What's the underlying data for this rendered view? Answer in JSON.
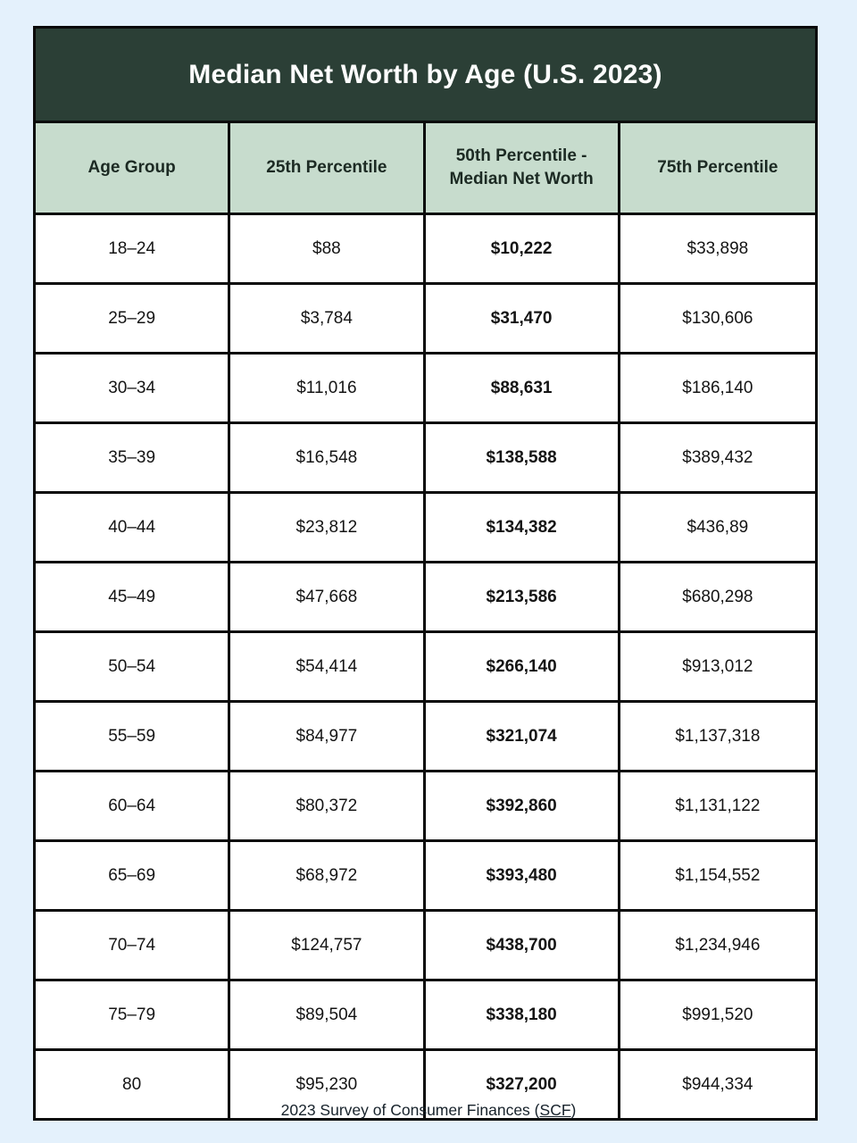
{
  "title": "Median Net Worth by Age (U.S. 2023)",
  "footer": {
    "prefix": "2023 Survey of Consumer Finances (",
    "link_text": "SCF",
    "suffix": ")"
  },
  "colors": {
    "page_bg": "#e4f1fc",
    "title_bg": "#2b3f36",
    "title_text": "#ffffff",
    "header_bg": "#c7dccd",
    "border": "#0a0a0a"
  },
  "chart_data": {
    "type": "table",
    "title": "Median Net Worth by Age (U.S. 2023)",
    "columns": [
      "Age Group",
      "25th Percentile",
      "50th Percentile - Median Net Worth",
      "75th Percentile"
    ],
    "emphasized_column_index": 2,
    "rows": [
      [
        "18–24",
        "$88",
        "$10,222",
        "$33,898"
      ],
      [
        "25–29",
        "$3,784",
        "$31,470",
        "$130,606"
      ],
      [
        "30–34",
        "$11,016",
        "$88,631",
        "$186,140"
      ],
      [
        "35–39",
        "$16,548",
        "$138,588",
        "$389,432"
      ],
      [
        "40–44",
        "$23,812",
        "$134,382",
        "$436,89"
      ],
      [
        "45–49",
        "$47,668",
        "$213,586",
        "$680,298"
      ],
      [
        "50–54",
        "$54,414",
        "$266,140",
        "$913,012"
      ],
      [
        "55–59",
        "$84,977",
        "$321,074",
        "$1,137,318"
      ],
      [
        "60–64",
        "$80,372",
        "$392,860",
        "$1,131,122"
      ],
      [
        "65–69",
        "$68,972",
        "$393,480",
        "$1,154,552"
      ],
      [
        "70–74",
        "$124,757",
        "$438,700",
        "$1,234,946"
      ],
      [
        "75–79",
        "$89,504",
        "$338,180",
        "$991,520"
      ],
      [
        "80",
        "$95,230",
        "$327,200",
        "$944,334"
      ]
    ],
    "source": "2023 Survey of Consumer Finances (SCF)"
  }
}
